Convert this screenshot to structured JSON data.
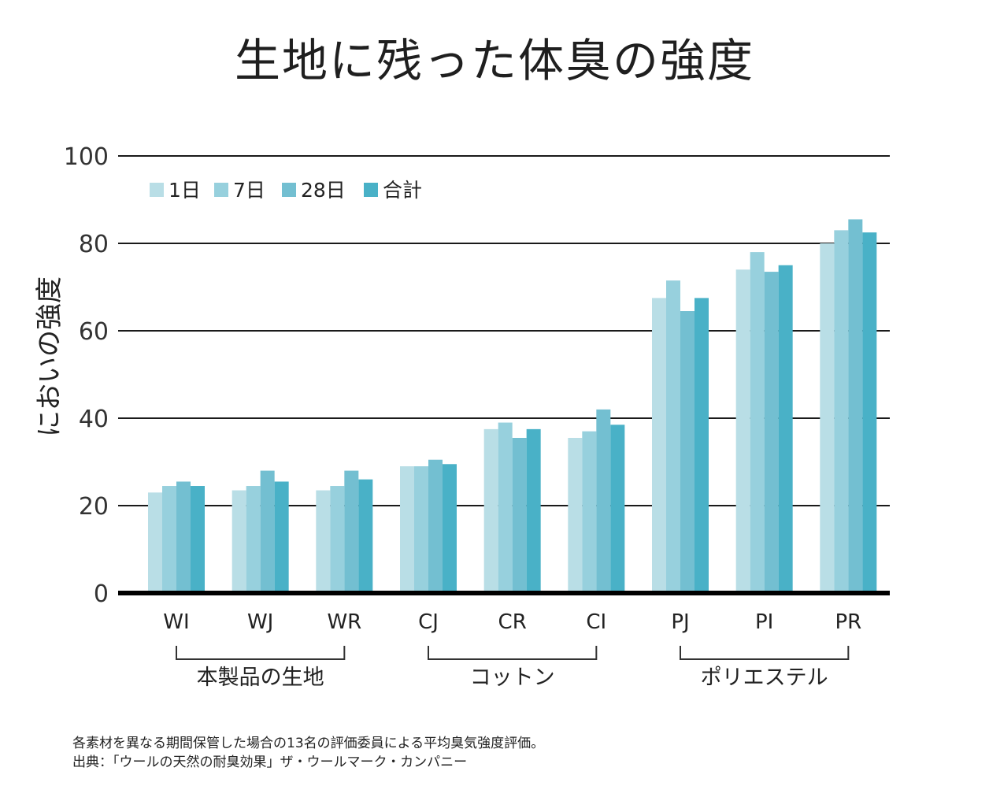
{
  "chart_data": {
    "type": "bar",
    "title": "生地に残った体臭の強度",
    "xlabel": "",
    "ylabel": "においの強度",
    "ylim": [
      0,
      100
    ],
    "yticks": [
      0,
      20,
      40,
      60,
      80,
      100
    ],
    "grid": true,
    "legend_position": "top-left",
    "categories": [
      "WI",
      "WJ",
      "WR",
      "CJ",
      "CR",
      "CI",
      "PJ",
      "PI",
      "PR"
    ],
    "groups": [
      {
        "label": "本製品の生地",
        "categories": [
          "WI",
          "WJ",
          "WR"
        ]
      },
      {
        "label": "コットン",
        "categories": [
          "CJ",
          "CR",
          "CI"
        ]
      },
      {
        "label": "ポリエステル",
        "categories": [
          "PJ",
          "PI",
          "PR"
        ]
      }
    ],
    "series": [
      {
        "name": "1日",
        "color": "#b9dee6",
        "values": [
          23,
          23.5,
          23.5,
          29,
          37.5,
          35.5,
          67.5,
          74,
          80
        ]
      },
      {
        "name": "7日",
        "color": "#97d0dd",
        "values": [
          24.5,
          24.5,
          24.5,
          29,
          39,
          37,
          71.5,
          78,
          83
        ]
      },
      {
        "name": "28日",
        "color": "#73bfd1",
        "values": [
          25.5,
          28,
          28,
          30.5,
          35.5,
          42,
          64.5,
          73.5,
          85.5
        ]
      },
      {
        "name": "合計",
        "color": "#49b1c7",
        "values": [
          24.5,
          25.5,
          26,
          29.5,
          37.5,
          38.5,
          67.5,
          75,
          82.5
        ]
      }
    ]
  },
  "notes": {
    "line1": "各素材を異なる期間保管した場合の13名の評価委員による平均臭気強度評価。",
    "line2": "出典：「ウールの天然の耐臭効果」ザ・ウールマーク・カンパニー"
  }
}
